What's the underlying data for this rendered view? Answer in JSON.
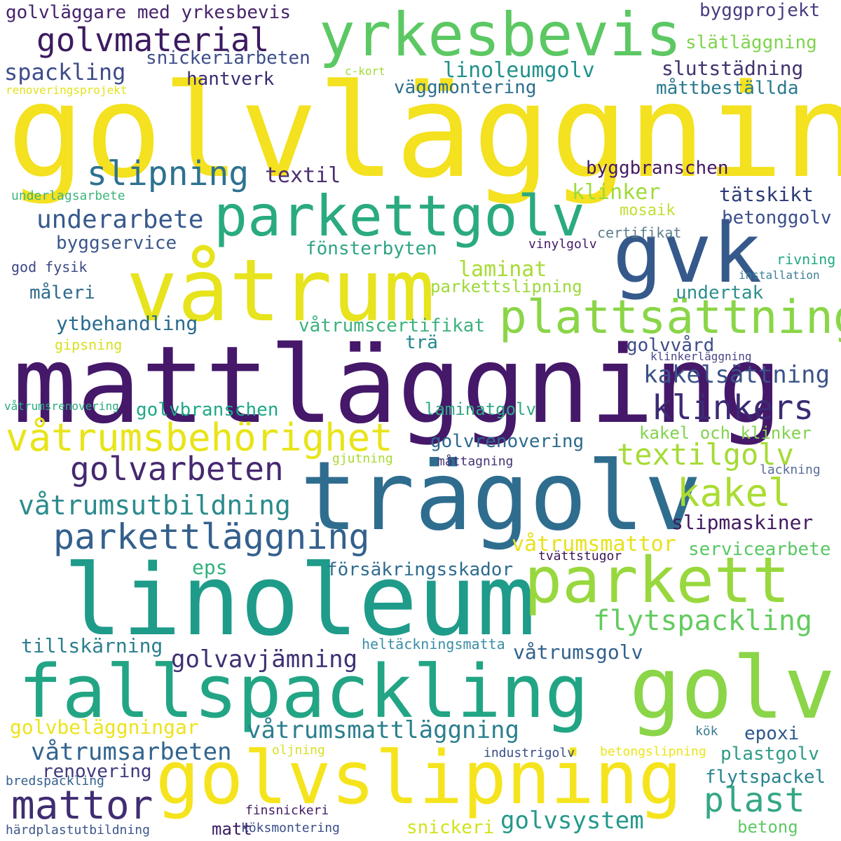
{
  "words": [
    {
      "text": "golvläggning",
      "color": "#f4e11f"
    },
    {
      "text": "mattläggning",
      "color": "#45186a"
    },
    {
      "text": "linoleum",
      "color": "#1f9b8a"
    },
    {
      "text": "fallspackling",
      "color": "#22a584"
    },
    {
      "text": "golvslipning",
      "color": "#f5e41d"
    },
    {
      "text": "trägolv",
      "color": "#2f6d8f"
    },
    {
      "text": "våtrum",
      "color": "#e7e31d"
    },
    {
      "text": "yrkesbevis",
      "color": "#5cc863"
    },
    {
      "text": "parkettgolv",
      "color": "#2aaa80"
    },
    {
      "text": "golv",
      "color": "#8ad548"
    },
    {
      "text": "parkett",
      "color": "#98d83e"
    },
    {
      "text": "gvk",
      "color": "#36598c"
    },
    {
      "text": "plattsättning",
      "color": "#8ad548"
    },
    {
      "text": "klinkers",
      "color": "#3b2a73"
    },
    {
      "text": "våtrumsbehörighet",
      "color": "#e8e419"
    },
    {
      "text": "golvarbeten",
      "color": "#45286f"
    },
    {
      "text": "parkettläggning",
      "color": "#34608d"
    },
    {
      "text": "golvmaterial",
      "color": "#3c1b60"
    },
    {
      "text": "mattor",
      "color": "#402d72"
    },
    {
      "text": "slipning",
      "color": "#2d7290"
    },
    {
      "text": "flytspackling",
      "color": "#63cb5f"
    },
    {
      "text": "kakel",
      "color": "#aadc32"
    },
    {
      "text": "textilgolv",
      "color": "#a5db36"
    },
    {
      "text": "våtrumsutbildning",
      "color": "#2b8a8c"
    },
    {
      "text": "plast",
      "color": "#35a786"
    },
    {
      "text": "underarbete",
      "color": "#37598c"
    },
    {
      "text": "golvavjämning",
      "color": "#3e2f72"
    },
    {
      "text": "våtrumsarbeten",
      "color": "#32648e"
    },
    {
      "text": "våtrumsmattläggning",
      "color": "#2b7f8e"
    },
    {
      "text": "golvsystem",
      "color": "#23998b"
    },
    {
      "text": "kakelsättning",
      "color": "#3b5288"
    },
    {
      "text": "golvläggare med yrkesbevis",
      "color": "#46236b"
    },
    {
      "text": "spackling",
      "color": "#3e4c8a"
    },
    {
      "text": "snickeriarbeten",
      "color": "#3d4e8a"
    },
    {
      "text": "hantverk",
      "color": "#3a2a72"
    },
    {
      "text": "byggprojekt",
      "color": "#473d7f"
    },
    {
      "text": "slätläggning",
      "color": "#7fd34e"
    },
    {
      "text": "slutstädning",
      "color": "#43336f"
    },
    {
      "text": "linoleumgolv",
      "color": "#21918c"
    },
    {
      "text": "väggmontering",
      "color": "#2c6f8e"
    },
    {
      "text": "måttbeställda",
      "color": "#29798e"
    },
    {
      "text": "renoveringsprojekt",
      "color": "#e3e21d"
    },
    {
      "text": "c-kort",
      "color": "#a0da39"
    },
    {
      "text": "textil",
      "color": "#4b2f72"
    },
    {
      "text": "byggbranschen",
      "color": "#471a64"
    },
    {
      "text": "klinker",
      "color": "#9edb3a"
    },
    {
      "text": "tätskikt",
      "color": "#2c3b77"
    },
    {
      "text": "mosaik",
      "color": "#bfdf30"
    },
    {
      "text": "betonggolv",
      "color": "#3d4e8a"
    },
    {
      "text": "underlagsarbete",
      "color": "#3fb57a"
    },
    {
      "text": "byggservice",
      "color": "#3a5888"
    },
    {
      "text": "fönsterbyten",
      "color": "#2ea485"
    },
    {
      "text": "certifikat",
      "color": "#5b7d8c"
    },
    {
      "text": "vinylgolv",
      "color": "#451b66"
    },
    {
      "text": "god fysik",
      "color": "#3b4887"
    },
    {
      "text": "laminat",
      "color": "#a8db34"
    },
    {
      "text": "parkettslipning",
      "color": "#9dd93b"
    },
    {
      "text": "rivning",
      "color": "#22a884"
    },
    {
      "text": "installation",
      "color": "#3d7f96"
    },
    {
      "text": "måleri",
      "color": "#2f6a8e"
    },
    {
      "text": "undertak",
      "color": "#2c8f8c"
    },
    {
      "text": "ytbehandling",
      "color": "#2a6b8e"
    },
    {
      "text": "våtrumscertifikat",
      "color": "#3bb27c"
    },
    {
      "text": "trä",
      "color": "#23888d"
    },
    {
      "text": "golvvård",
      "color": "#3e4d89"
    },
    {
      "text": "gipsning",
      "color": "#d9e021"
    },
    {
      "text": "klinkerläggning",
      "color": "#484888"
    },
    {
      "text": "våtrumsrenovering",
      "color": "#2aaa80"
    },
    {
      "text": "golvbranschen",
      "color": "#1ea987"
    },
    {
      "text": "laminatgolv",
      "color": "#31a984"
    },
    {
      "text": "kakel och klinker",
      "color": "#82d34c"
    },
    {
      "text": "golvrenovering",
      "color": "#2c6a8e"
    },
    {
      "text": "gjutning",
      "color": "#a8da32"
    },
    {
      "text": "måttagning",
      "color": "#453274"
    },
    {
      "text": "lackning",
      "color": "#5a6c9a"
    },
    {
      "text": "slipmaskiner",
      "color": "#421a60"
    },
    {
      "text": "våtrumsmattor",
      "color": "#e8e11f"
    },
    {
      "text": "servicearbete",
      "color": "#58c765"
    },
    {
      "text": "eps",
      "color": "#2fb27c"
    },
    {
      "text": "försäkringsskador",
      "color": "#2e6c8e"
    },
    {
      "text": "tvättstugor",
      "color": "#3e1556"
    },
    {
      "text": "tillskärning",
      "color": "#2b7f8e"
    },
    {
      "text": "heltäckningsmatta",
      "color": "#3b8da6"
    },
    {
      "text": "våtrumsgolv",
      "color": "#33618d"
    },
    {
      "text": "golvbeläggningar",
      "color": "#ede31b"
    },
    {
      "text": "epoxi",
      "color": "#2c578b"
    },
    {
      "text": "kök",
      "color": "#3a7a8e"
    },
    {
      "text": "oljning",
      "color": "#d7df23"
    },
    {
      "text": "industrigolv",
      "color": "#3a4d87"
    },
    {
      "text": "betongslipning",
      "color": "#ebe51b"
    },
    {
      "text": "plastgolv",
      "color": "#2e9b87"
    },
    {
      "text": "renovering",
      "color": "#3f3a7d"
    },
    {
      "text": "bredspackling",
      "color": "#34618c"
    },
    {
      "text": "flytspackel",
      "color": "#26838e"
    },
    {
      "text": "finsnickeri",
      "color": "#451c67"
    },
    {
      "text": "matt",
      "color": "#3b1d60"
    },
    {
      "text": "köksmontering",
      "color": "#3a4e8a"
    },
    {
      "text": "snickeri",
      "color": "#d2e21b"
    },
    {
      "text": "betong",
      "color": "#61c866"
    },
    {
      "text": "härdplastutbildning",
      "color": "#3e5689"
    }
  ]
}
